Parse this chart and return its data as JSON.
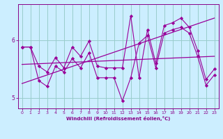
{
  "xlabel": "Windchill (Refroidissement éolien,°C)",
  "background_color": "#cceeff",
  "line_color": "#990099",
  "grid_color": "#99cccc",
  "tick_color": "#880088",
  "label_color": "#880088",
  "xlim": [
    -0.5,
    23.5
  ],
  "ylim": [
    4.82,
    6.62
  ],
  "yticks": [
    5,
    6
  ],
  "xticks": [
    0,
    1,
    2,
    3,
    4,
    5,
    6,
    7,
    8,
    9,
    10,
    11,
    12,
    13,
    14,
    15,
    16,
    17,
    18,
    19,
    20,
    21,
    22,
    23
  ],
  "series1_x": [
    0,
    1,
    2,
    3,
    4,
    5,
    6,
    7,
    8,
    9,
    10,
    11,
    12,
    13,
    14,
    15,
    16,
    17,
    18,
    19,
    20,
    21,
    22,
    23
  ],
  "series1_y": [
    5.88,
    5.88,
    5.55,
    5.45,
    5.7,
    5.52,
    5.88,
    5.72,
    5.98,
    5.55,
    5.52,
    5.52,
    5.52,
    6.42,
    5.35,
    6.18,
    5.6,
    6.25,
    6.3,
    6.38,
    6.22,
    5.82,
    5.32,
    5.5
  ],
  "series2_x": [
    0,
    1,
    2,
    3,
    4,
    5,
    6,
    7,
    8,
    9,
    10,
    11,
    12,
    13,
    14,
    15,
    16,
    17,
    18,
    19,
    20,
    21,
    22,
    23
  ],
  "series2_y": [
    5.88,
    5.88,
    5.3,
    5.2,
    5.55,
    5.45,
    5.68,
    5.52,
    5.78,
    5.35,
    5.35,
    5.35,
    4.95,
    5.35,
    5.95,
    6.08,
    5.52,
    6.12,
    6.18,
    6.22,
    6.12,
    5.72,
    5.22,
    5.4
  ],
  "trend1_x": [
    0,
    23
  ],
  "trend1_y": [
    5.58,
    5.72
  ],
  "trend2_x": [
    0,
    23
  ],
  "trend2_y": [
    5.25,
    6.38
  ]
}
